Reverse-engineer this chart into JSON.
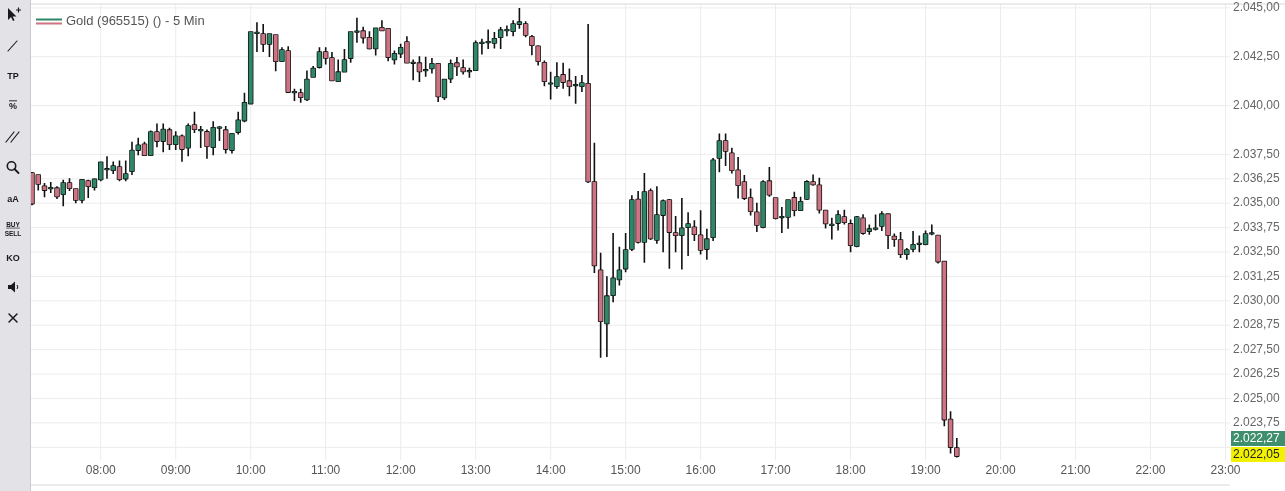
{
  "chart_data": {
    "type": "candlestick",
    "series": [
      {
        "name": "Gold (965515) () - 5 Min",
        "x": [
          7.0833,
          7.1667,
          7.25,
          7.3333,
          7.4167,
          7.5,
          7.5833,
          7.6667,
          7.75,
          7.8333,
          7.9167,
          8,
          8.0833,
          8.1667,
          8.25,
          8.3333,
          8.4167,
          8.5,
          8.5833,
          8.6667,
          8.75,
          8.8333,
          8.9167,
          9,
          9.0833,
          9.1667,
          9.25,
          9.3333,
          9.4167,
          9.5,
          9.5833,
          9.6667,
          9.75,
          9.8333,
          9.9167,
          10,
          10.0833,
          10.1667,
          10.25,
          10.3333,
          10.4167,
          10.5,
          10.5833,
          10.6667,
          10.75,
          10.8333,
          10.9167,
          11,
          11.0833,
          11.1667,
          11.25,
          11.3333,
          11.4167,
          11.5,
          11.5833,
          11.6667,
          11.75,
          11.8333,
          11.9167,
          12,
          12.0833,
          12.1667,
          12.25,
          12.3333,
          12.4167,
          12.5,
          12.5833,
          12.6667,
          12.75,
          12.8333,
          12.9167,
          13,
          13.0833,
          13.1667,
          13.25,
          13.3333,
          13.4167,
          13.5,
          13.5833,
          13.6667,
          13.75,
          13.8333,
          13.9167,
          14,
          14.0833,
          14.1667,
          14.25,
          14.3333,
          14.4167,
          14.5,
          14.5833,
          14.6667,
          14.75,
          14.8333,
          14.9167,
          15,
          15.0833,
          15.1667,
          15.25,
          15.3333,
          15.4167,
          15.5,
          15.5833,
          15.6667,
          15.75,
          15.8333,
          15.9167,
          16,
          16.0833,
          16.1667,
          16.25,
          16.3333,
          16.4167,
          16.5,
          16.5833,
          16.6667,
          16.75,
          16.8333,
          16.9167,
          17,
          17.0833,
          17.1667,
          17.25,
          17.3333,
          17.4167,
          17.5,
          17.5833,
          17.6667,
          17.75,
          17.8333,
          17.9167,
          18,
          18.0833,
          18.1667,
          18.25,
          18.3333,
          18.4167,
          18.5,
          18.5833,
          18.6667,
          18.75,
          18.8333,
          18.9167,
          19,
          19.0833,
          19.1667,
          19.25,
          19.3333,
          19.4167
        ],
        "ohlc": [
          [
            2036.55,
            2036.6,
            2034.9,
            2034.98
          ],
          [
            2036.44,
            2036.46,
            2035.65,
            2035.98
          ],
          [
            2035.87,
            2036.03,
            2035.31,
            2035.67
          ],
          [
            2035.77,
            2036.08,
            2035.52,
            2035.77
          ],
          [
            2035.77,
            2035.87,
            2035.21,
            2035.34
          ],
          [
            2035.46,
            2036.2,
            2034.85,
            2036.03
          ],
          [
            2036.03,
            2036.28,
            2035.62,
            2035.77
          ],
          [
            2035.73,
            2035.77,
            2035.0,
            2035.16
          ],
          [
            2035.16,
            2036.22,
            2035.0,
            2036.2
          ],
          [
            2036.14,
            2036.2,
            2035.26,
            2035.87
          ],
          [
            2035.82,
            2036.28,
            2035.65,
            2036.23
          ],
          [
            2036.21,
            2037.12,
            2036.13,
            2037.1
          ],
          [
            2036.74,
            2037.41,
            2036.25,
            2036.74
          ],
          [
            2036.69,
            2037.13,
            2036.5,
            2036.9
          ],
          [
            2036.85,
            2037.18,
            2036.13,
            2036.23
          ],
          [
            2036.26,
            2037.18,
            2036.13,
            2036.49
          ],
          [
            2036.64,
            2038.14,
            2036.44,
            2037.7
          ],
          [
            2037.72,
            2038.35,
            2037.46,
            2037.97
          ],
          [
            2038.02,
            2038.14,
            2037.44,
            2037.46
          ],
          [
            2037.46,
            2038.72,
            2037.44,
            2038.64
          ],
          [
            2038.64,
            2039.08,
            2037.87,
            2038.18
          ],
          [
            2038.18,
            2039.08,
            2037.61,
            2038.77
          ],
          [
            2038.74,
            2038.86,
            2037.72,
            2038.02
          ],
          [
            2038.02,
            2038.69,
            2037.72,
            2038.43
          ],
          [
            2038.43,
            2038.52,
            2037.12,
            2037.77
          ],
          [
            2037.84,
            2039.08,
            2037.41,
            2038.95
          ],
          [
            2039.0,
            2039.68,
            2038.6,
            2038.79
          ],
          [
            2038.74,
            2038.95,
            2037.83,
            2038.74
          ],
          [
            2038.65,
            2038.77,
            2037.27,
            2037.92
          ],
          [
            2037.87,
            2039.2,
            2037.46,
            2038.86
          ],
          [
            2038.87,
            2038.95,
            2038.18,
            2038.87
          ],
          [
            2038.74,
            2038.95,
            2037.54,
            2037.77
          ],
          [
            2037.72,
            2038.57,
            2037.54,
            2038.55
          ],
          [
            2038.64,
            2039.68,
            2038.52,
            2039.25
          ],
          [
            2039.23,
            2040.65,
            2039.15,
            2040.14
          ],
          [
            2040.1,
            2043.78,
            2040.08,
            2043.76
          ],
          [
            2043.72,
            2044.27,
            2042.74,
            2043.72
          ],
          [
            2043.66,
            2044.17,
            2042.74,
            2043.15
          ],
          [
            2043.15,
            2043.68,
            2042.48,
            2043.66
          ],
          [
            2043.61,
            2043.63,
            2041.76,
            2042.27
          ],
          [
            2042.27,
            2042.99,
            2042.25,
            2042.84
          ],
          [
            2042.79,
            2043.04,
            2040.67,
            2040.69
          ],
          [
            2040.69,
            2040.86,
            2040.23,
            2040.69
          ],
          [
            2040.64,
            2040.86,
            2040.14,
            2040.43
          ],
          [
            2040.31,
            2041.79,
            2040.23,
            2041.33
          ],
          [
            2041.46,
            2042.02,
            2041.44,
            2041.9
          ],
          [
            2041.97,
            2042.99,
            2041.9,
            2042.74
          ],
          [
            2042.74,
            2042.99,
            2042.1,
            2042.44
          ],
          [
            2042.43,
            2042.74,
            2041.26,
            2041.28
          ],
          [
            2041.25,
            2042.36,
            2041.23,
            2041.71
          ],
          [
            2041.73,
            2042.9,
            2041.7,
            2042.33
          ],
          [
            2042.43,
            2043.78,
            2042.19,
            2043.76
          ],
          [
            2043.79,
            2044.49,
            2043.21,
            2043.79
          ],
          [
            2043.81,
            2044.03,
            2043.18,
            2043.48
          ],
          [
            2043.47,
            2043.81,
            2042.87,
            2042.92
          ],
          [
            2042.92,
            2043.98,
            2042.56,
            2043.96
          ],
          [
            2043.98,
            2044.37,
            2043.81,
            2043.84
          ],
          [
            2043.93,
            2043.95,
            2042.27,
            2042.48
          ],
          [
            2042.36,
            2042.82,
            2042.1,
            2042.65
          ],
          [
            2042.66,
            2043.16,
            2042.44,
            2042.96
          ],
          [
            2043.25,
            2043.55,
            2042.17,
            2042.19
          ],
          [
            2042.19,
            2042.36,
            2041.3,
            2042.19
          ],
          [
            2042.17,
            2042.53,
            2041.2,
            2041.74
          ],
          [
            2041.81,
            2042.5,
            2041.47,
            2041.81
          ],
          [
            2041.9,
            2042.44,
            2041.64,
            2042.14
          ],
          [
            2042.14,
            2042.16,
            2040.18,
            2040.46
          ],
          [
            2040.41,
            2041.35,
            2040.28,
            2041.33
          ],
          [
            2041.38,
            2042.36,
            2041.16,
            2042.14
          ],
          [
            2042.17,
            2042.48,
            2041.51,
            2042.0
          ],
          [
            2041.92,
            2042.36,
            2041.59,
            2041.74
          ],
          [
            2041.76,
            2041.93,
            2041.42,
            2041.76
          ],
          [
            2041.81,
            2043.33,
            2041.79,
            2043.2
          ],
          [
            2043.21,
            2043.42,
            2042.61,
            2043.21
          ],
          [
            2043.25,
            2043.89,
            2042.9,
            2043.25
          ],
          [
            2043.2,
            2043.76,
            2042.92,
            2043.42
          ],
          [
            2043.5,
            2044.02,
            2042.9,
            2043.86
          ],
          [
            2043.86,
            2044.1,
            2043.55,
            2043.86
          ],
          [
            2043.81,
            2044.37,
            2043.55,
            2044.17
          ],
          [
            2044.17,
            2045.0,
            2043.93,
            2044.27
          ],
          [
            2044.17,
            2044.32,
            2043.5,
            2043.61
          ],
          [
            2043.52,
            2043.61,
            2042.58,
            2043.09
          ],
          [
            2043.04,
            2043.09,
            2042.05,
            2042.27
          ],
          [
            2042.19,
            2042.31,
            2040.99,
            2041.25
          ],
          [
            2041.13,
            2041.73,
            2040.31,
            2041.13
          ],
          [
            2040.99,
            2042.22,
            2040.86,
            2041.46
          ],
          [
            2041.57,
            2042.19,
            2040.86,
            2041.2
          ],
          [
            2041.25,
            2041.9,
            2040.48,
            2040.99
          ],
          [
            2041.05,
            2041.51,
            2040.09,
            2041.05
          ],
          [
            2040.99,
            2041.56,
            2040.69,
            2041.15
          ],
          [
            2041.11,
            2044.18,
            2036.04,
            2036.11
          ],
          [
            2036.08,
            2038.09,
            2031.43,
            2031.81
          ],
          [
            2031.57,
            2032.46,
            2027.08,
            2028.96
          ],
          [
            2028.84,
            2031.26,
            2027.13,
            2030.24
          ],
          [
            2030.29,
            2033.48,
            2029.93,
            2031.16
          ],
          [
            2031.09,
            2032.77,
            2030.78,
            2031.57
          ],
          [
            2031.65,
            2033.48,
            2031.47,
            2032.6
          ],
          [
            2032.66,
            2035.41,
            2032.55,
            2035.16
          ],
          [
            2035.19,
            2035.62,
            2032.93,
            2033.01
          ],
          [
            2033.01,
            2036.55,
            2031.95,
            2035.57
          ],
          [
            2035.62,
            2035.75,
            2033.11,
            2033.19
          ],
          [
            2033.12,
            2035.87,
            2032.92,
            2034.39
          ],
          [
            2034.39,
            2035.19,
            2032.49,
            2035.11
          ],
          [
            2035.16,
            2035.22,
            2031.64,
            2033.52
          ],
          [
            2033.47,
            2034.34,
            2032.49,
            2033.36
          ],
          [
            2033.36,
            2035.26,
            2031.6,
            2033.72
          ],
          [
            2033.77,
            2034.54,
            2032.29,
            2033.93
          ],
          [
            2033.77,
            2034.13,
            2033.06,
            2033.41
          ],
          [
            2033.36,
            2034.64,
            2032.37,
            2032.6
          ],
          [
            2032.65,
            2033.69,
            2032.11,
            2033.16
          ],
          [
            2033.26,
            2037.32,
            2033.06,
            2037.2
          ],
          [
            2037.32,
            2038.57,
            2036.59,
            2038.18
          ],
          [
            2038.18,
            2038.57,
            2036.9,
            2037.67
          ],
          [
            2037.56,
            2037.84,
            2036.52,
            2036.69
          ],
          [
            2036.69,
            2037.36,
            2035.24,
            2035.92
          ],
          [
            2036.08,
            2036.44,
            2035.16,
            2035.26
          ],
          [
            2035.26,
            2035.75,
            2034.37,
            2034.59
          ],
          [
            2034.54,
            2035.02,
            2033.52,
            2033.88
          ],
          [
            2033.77,
            2036.18,
            2033.72,
            2036.08
          ],
          [
            2036.13,
            2036.85,
            2035.33,
            2035.43
          ],
          [
            2035.26,
            2035.28,
            2034.16,
            2034.23
          ],
          [
            2034.29,
            2034.81,
            2033.48,
            2034.29
          ],
          [
            2034.29,
            2035.18,
            2033.69,
            2035.16
          ],
          [
            2035.27,
            2035.58,
            2034.33,
            2034.64
          ],
          [
            2034.64,
            2035.33,
            2034.62,
            2035.07
          ],
          [
            2035.22,
            2036.18,
            2035.16,
            2036.09
          ],
          [
            2036.08,
            2036.47,
            2035.89,
            2035.96
          ],
          [
            2035.92,
            2036.3,
            2034.47,
            2034.67
          ],
          [
            2034.62,
            2034.64,
            2033.7,
            2033.96
          ],
          [
            2033.89,
            2034.25,
            2033.14,
            2033.89
          ],
          [
            2033.98,
            2034.64,
            2033.6,
            2034.39
          ],
          [
            2034.29,
            2034.67,
            2033.91,
            2034.03
          ],
          [
            2033.94,
            2034.16,
            2032.49,
            2032.85
          ],
          [
            2032.8,
            2034.34,
            2032.75,
            2034.29
          ],
          [
            2034.23,
            2034.44,
            2033.39,
            2033.47
          ],
          [
            2033.57,
            2033.91,
            2033.38,
            2033.67
          ],
          [
            2033.7,
            2034.42,
            2033.6,
            2033.7
          ],
          [
            2033.83,
            2034.59,
            2033.57,
            2034.44
          ],
          [
            2034.44,
            2034.46,
            2032.66,
            2033.36
          ],
          [
            2033.29,
            2033.45,
            2032.77,
            2033.16
          ],
          [
            2033.11,
            2033.52,
            2032.2,
            2032.39
          ],
          [
            2032.39,
            2032.71,
            2032.11,
            2032.6
          ],
          [
            2032.66,
            2033.57,
            2032.49,
            2032.87
          ],
          [
            2032.92,
            2033.34,
            2032.49,
            2032.92
          ],
          [
            2032.9,
            2033.6,
            2032.85,
            2033.42
          ],
          [
            2033.45,
            2033.91,
            2033.36,
            2033.45
          ],
          [
            2033.34,
            2033.37,
            2031.91,
            2032.01
          ],
          [
            2032.01,
            2032.03,
            2023.58,
            2023.92
          ],
          [
            2023.92,
            2024.35,
            2022.18,
            2022.51
          ],
          [
            2022.46,
            2022.98,
            2021.98,
            2022.05
          ]
        ],
        "colors": [
          "#cd7382",
          "#cd7382",
          "#cd7382",
          "#2e8766",
          "#cd7382",
          "#2e8766",
          "#cd7382",
          "#cd7382",
          "#2e8766",
          "#cd7382",
          "#2e8766",
          "#2e8766",
          "#2e8766",
          "#2e8766",
          "#cd7382",
          "#2e8766",
          "#2e8766",
          "#2e8766",
          "#cd7382",
          "#2e8766",
          "#cd7382",
          "#2e8766",
          "#cd7382",
          "#2e8766",
          "#cd7382",
          "#2e8766",
          "#cd7382",
          "#2e8766",
          "#cd7382",
          "#2e8766",
          "#2e8766",
          "#cd7382",
          "#2e8766",
          "#2e8766",
          "#2e8766",
          "#2e8766",
          "#2e8766",
          "#cd7382",
          "#2e8766",
          "#cd7382",
          "#2e8766",
          "#cd7382",
          "#2e8766",
          "#cd7382",
          "#2e8766",
          "#2e8766",
          "#2e8766",
          "#cd7382",
          "#cd7382",
          "#2e8766",
          "#2e8766",
          "#2e8766",
          "#2e8766",
          "#cd7382",
          "#cd7382",
          "#2e8766",
          "#cd7382",
          "#cd7382",
          "#2e8766",
          "#2e8766",
          "#cd7382",
          "#2e8766",
          "#cd7382",
          "#2e8766",
          "#2e8766",
          "#cd7382",
          "#2e8766",
          "#2e8766",
          "#cd7382",
          "#cd7382",
          "#2e8766",
          "#2e8766",
          "#2e8766",
          "#2e8766",
          "#2e8766",
          "#2e8766",
          "#2e8766",
          "#2e8766",
          "#2e8766",
          "#cd7382",
          "#cd7382",
          "#cd7382",
          "#cd7382",
          "#2e8766",
          "#2e8766",
          "#cd7382",
          "#cd7382",
          "#2e8766",
          "#2e8766",
          "#cd7382",
          "#cd7382",
          "#cd7382",
          "#2e8766",
          "#2e8766",
          "#2e8766",
          "#2e8766",
          "#2e8766",
          "#cd7382",
          "#2e8766",
          "#cd7382",
          "#2e8766",
          "#2e8766",
          "#cd7382",
          "#cd7382",
          "#2e8766",
          "#2e8766",
          "#cd7382",
          "#cd7382",
          "#2e8766",
          "#2e8766",
          "#2e8766",
          "#cd7382",
          "#cd7382",
          "#cd7382",
          "#cd7382",
          "#cd7382",
          "#cd7382",
          "#2e8766",
          "#cd7382",
          "#cd7382",
          "#2e8766",
          "#2e8766",
          "#cd7382",
          "#2e8766",
          "#2e8766",
          "#cd7382",
          "#cd7382",
          "#cd7382",
          "#2e8766",
          "#2e8766",
          "#cd7382",
          "#cd7382",
          "#2e8766",
          "#cd7382",
          "#2e8766",
          "#2e8766",
          "#2e8766",
          "#cd7382",
          "#cd7382",
          "#cd7382",
          "#2e8766",
          "#2e8766",
          "#2e8766",
          "#2e8766",
          "#2e8766",
          "#cd7382",
          "#cd7382",
          "#cd7382",
          "#cd7382"
        ]
      }
    ],
    "xlim": [
      7.07,
      23.06
    ],
    "xticks": [
      {
        "value": 8,
        "label": "08:00"
      },
      {
        "value": 9,
        "label": "09:00"
      },
      {
        "value": 10,
        "label": "10:00"
      },
      {
        "value": 11,
        "label": "11:00"
      },
      {
        "value": 12,
        "label": "12:00"
      },
      {
        "value": 13,
        "label": "13:00"
      },
      {
        "value": 14,
        "label": "14:00"
      },
      {
        "value": 15,
        "label": "15:00"
      },
      {
        "value": 16,
        "label": "16:00"
      },
      {
        "value": 17,
        "label": "17:00"
      },
      {
        "value": 18,
        "label": "18:00"
      },
      {
        "value": 19,
        "label": "19:00"
      },
      {
        "value": 20,
        "label": "20:00"
      },
      {
        "value": 21,
        "label": "21:00"
      },
      {
        "value": 22,
        "label": "22:00"
      },
      {
        "value": 23,
        "label": "23:00"
      }
    ],
    "ylim": [
      2020.57,
      2045.2
    ],
    "yticks": [
      {
        "value": 2045,
        "label": "2.045,00"
      },
      {
        "value": 2042.5,
        "label": "2.042,50"
      },
      {
        "value": 2040,
        "label": "2.040,00"
      },
      {
        "value": 2037.5,
        "label": "2.037,50"
      },
      {
        "value": 2036.25,
        "label": "2.036,25"
      },
      {
        "value": 2035,
        "label": "2.035,00"
      },
      {
        "value": 2033.75,
        "label": "2.033,75"
      },
      {
        "value": 2032.5,
        "label": "2.032,50"
      },
      {
        "value": 2031.25,
        "label": "2.031,25"
      },
      {
        "value": 2030,
        "label": "2.030,00"
      },
      {
        "value": 2028.75,
        "label": "2.028,75"
      },
      {
        "value": 2027.5,
        "label": "2.027,50"
      },
      {
        "value": 2026.25,
        "label": "2.026,25"
      },
      {
        "value": 2025,
        "label": "2.025,00"
      },
      {
        "value": 2023.75,
        "label": "2.023,75"
      },
      {
        "value": 2022.5,
        "label": null
      }
    ],
    "grid": true,
    "legend": "top left",
    "annotations": [
      "TP",
      "%",
      "aA",
      "BUY",
      "SELL",
      "KO",
      "2.022,27",
      "2.022,05"
    ]
  }
}
